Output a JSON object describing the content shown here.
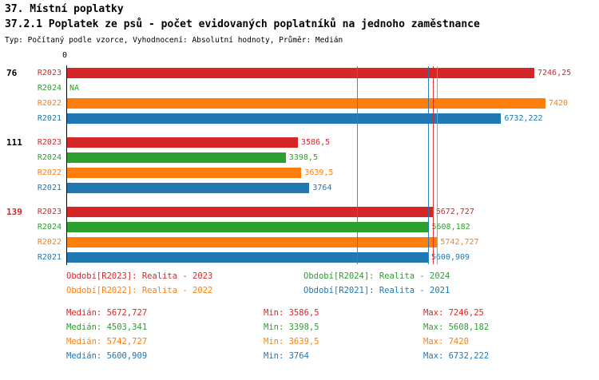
{
  "title": "37. Místní poplatky",
  "subtitle": "37.2.1 Poplatek ze psů - počet evidovaných poplatníků na jednoho zaměstnance",
  "meta": "Typ: Počítaný podle vzorce, Vyhodnocení: Absolutní hodnoty, Průměr: Medián",
  "axis": {
    "zero_label": "0"
  },
  "colors": {
    "R2023": "#d62728",
    "R2024": "#2ca02c",
    "R2022": "#ff7f0e",
    "R2021": "#1f77b4",
    "text": "#000000"
  },
  "chart_data": {
    "type": "bar",
    "orientation": "horizontal",
    "xlim": [
      0,
      7420
    ],
    "series_order": [
      "R2023",
      "R2024",
      "R2022",
      "R2021"
    ],
    "groups": [
      {
        "label": "76",
        "label_color": "#000000",
        "bars": [
          {
            "series": "R2023",
            "value": 7246.25,
            "display": "7246,25"
          },
          {
            "series": "R2024",
            "value": null,
            "display": "NA"
          },
          {
            "series": "R2022",
            "value": 7420,
            "display": "7420"
          },
          {
            "series": "R2021",
            "value": 6732.222,
            "display": "6732,222"
          }
        ]
      },
      {
        "label": "111",
        "label_color": "#000000",
        "bars": [
          {
            "series": "R2023",
            "value": 3586.5,
            "display": "3586,5"
          },
          {
            "series": "R2024",
            "value": 3398.5,
            "display": "3398,5"
          },
          {
            "series": "R2022",
            "value": 3639.5,
            "display": "3639,5"
          },
          {
            "series": "R2021",
            "value": 3764,
            "display": "3764"
          }
        ]
      },
      {
        "label": "139",
        "label_color": "#d62728",
        "bars": [
          {
            "series": "R2023",
            "value": 5672.727,
            "display": "5672,727"
          },
          {
            "series": "R2024",
            "value": 5608.182,
            "display": "5608,182"
          },
          {
            "series": "R2022",
            "value": 5742.727,
            "display": "5742,727"
          },
          {
            "series": "R2021",
            "value": 5600.909,
            "display": "5600,909"
          }
        ]
      }
    ],
    "median_lines": [
      {
        "series": "R2023",
        "value": 5672.727
      },
      {
        "series": "R2024",
        "value": 4503.341
      },
      {
        "series": "R2022",
        "value": 5742.727
      },
      {
        "series": "R2021",
        "value": 5600.909
      }
    ]
  },
  "legend": [
    {
      "series": "R2023",
      "label": "Období[R2023]: Realita - 2023"
    },
    {
      "series": "R2024",
      "label": "Období[R2024]: Realita - 2024"
    },
    {
      "series": "R2022",
      "label": "Období[R2022]: Realita - 2022"
    },
    {
      "series": "R2021",
      "label": "Období[R2021]: Realita - 2021"
    }
  ],
  "stats": [
    {
      "series": "R2023",
      "median": "Medián: 5672,727",
      "min": "Min: 3586,5",
      "max": "Max: 7246,25"
    },
    {
      "series": "R2024",
      "median": "Medián: 4503,341",
      "min": "Min: 3398,5",
      "max": "Max: 5608,182"
    },
    {
      "series": "R2022",
      "median": "Medián: 5742,727",
      "min": "Min: 3639,5",
      "max": "Max: 7420"
    },
    {
      "series": "R2021",
      "median": "Medián: 5600,909",
      "min": "Min: 3764",
      "max": "Max: 6732,222"
    }
  ]
}
